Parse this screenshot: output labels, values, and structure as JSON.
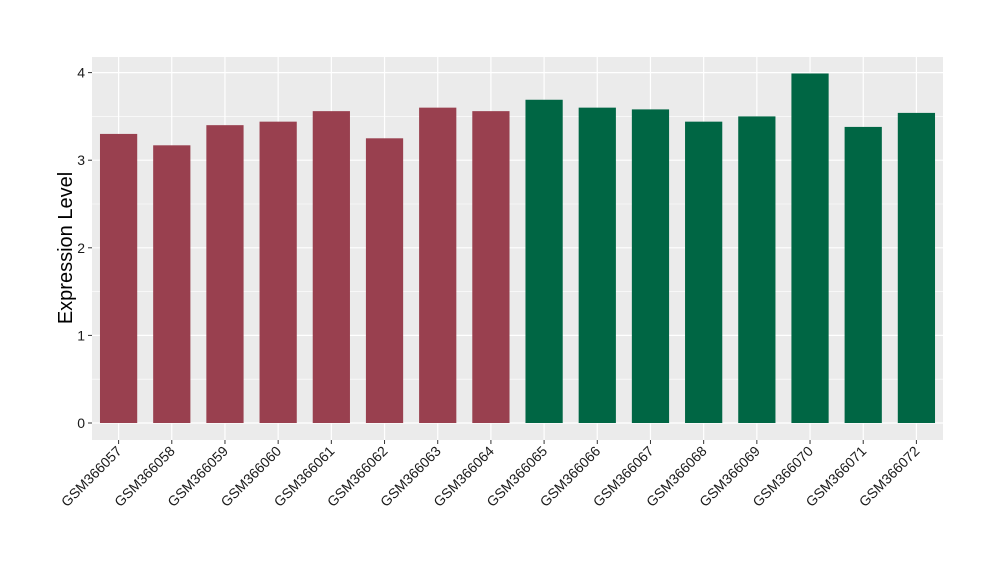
{
  "chart_data": {
    "type": "bar",
    "title": "",
    "xlabel": "",
    "ylabel": "Expression Level",
    "ylim": [
      0,
      4.2
    ],
    "yticks": [
      0,
      1,
      2,
      3,
      4
    ],
    "grid": true,
    "legend": "none",
    "categories": [
      "GSM366057",
      "GSM366058",
      "GSM366059",
      "GSM366060",
      "GSM366061",
      "GSM366062",
      "GSM366063",
      "GSM366064",
      "GSM366065",
      "GSM366066",
      "GSM366067",
      "GSM366068",
      "GSM366069",
      "GSM366070",
      "GSM366071",
      "GSM366072"
    ],
    "values": [
      3.3,
      3.17,
      3.4,
      3.44,
      3.56,
      3.25,
      3.6,
      3.56,
      3.69,
      3.6,
      3.58,
      3.44,
      3.5,
      3.99,
      3.38,
      3.54
    ],
    "groups": [
      "red",
      "red",
      "red",
      "red",
      "red",
      "red",
      "red",
      "red",
      "green",
      "green",
      "green",
      "green",
      "green",
      "green",
      "green",
      "green"
    ],
    "colors": {
      "red": "#99404f",
      "green": "#006644",
      "panel": "#ebebeb",
      "grid": "#ffffff"
    }
  }
}
